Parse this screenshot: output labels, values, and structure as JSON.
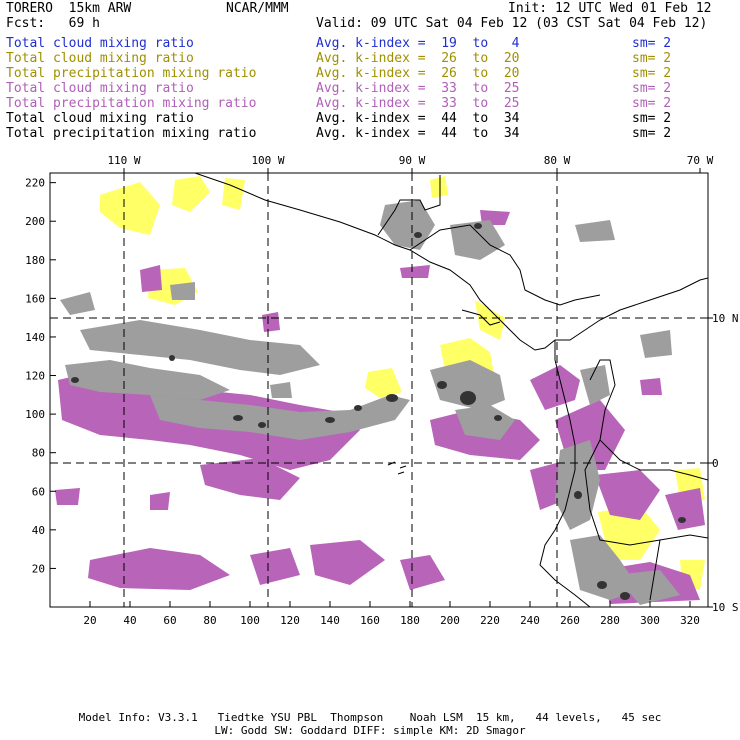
{
  "header": {
    "title": "TORERO  15km ARW",
    "center": "NCAR/MMM",
    "init": "Init: 12 UTC Wed 01 Feb 12",
    "fcst": "Fcst:   69 h",
    "valid": "Valid: 09 UTC Sat 04 Feb 12 (03 CST Sat 04 Feb 12)"
  },
  "legend": [
    {
      "field": "Total cloud mixing ratio",
      "kindex": "Avg. k-index =  19  to   4",
      "sm": "sm= 2",
      "color": "#1f2fd0"
    },
    {
      "field": "Total cloud mixing ratio",
      "kindex": "Avg. k-index =  26  to  20",
      "sm": "sm= 2",
      "color": "#a09000"
    },
    {
      "field": "Total precipitation mixing ratio",
      "kindex": "Avg. k-index =  26  to  20",
      "sm": "sm= 2",
      "color": "#a09000"
    },
    {
      "field": "Total cloud mixing ratio",
      "kindex": "Avg. k-index =  33  to  25",
      "sm": "sm= 2",
      "color": "#b060b8"
    },
    {
      "field": "Total precipitation mixing ratio",
      "kindex": "Avg. k-index =  33  to  25",
      "sm": "sm= 2",
      "color": "#b060b8"
    },
    {
      "field": "Total cloud mixing ratio",
      "kindex": "Avg. k-index =  44  to  34",
      "sm": "sm= 2",
      "color": "#000000"
    },
    {
      "field": "Total precipitation mixing ratio",
      "kindex": "Avg. k-index =  44  to  34",
      "sm": "sm= 2",
      "color": "#000000"
    }
  ],
  "map": {
    "lon_labels": [
      "110 W",
      "100 W",
      "90 W",
      "80 W",
      "70 W"
    ],
    "lat_labels": [
      "10 N",
      "0",
      "10 S"
    ],
    "x_ticks": [
      "20",
      "40",
      "60",
      "80",
      "100",
      "120",
      "140",
      "160",
      "180",
      "200",
      "220",
      "240",
      "260",
      "280",
      "300",
      "320"
    ],
    "y_ticks": [
      "20",
      "40",
      "60",
      "80",
      "100",
      "120",
      "140",
      "160",
      "180",
      "200",
      "220"
    ],
    "colors": {
      "yellow": "#ffff66",
      "purple": "#b864b8",
      "gray": "#9e9e9e",
      "dark": "#333333",
      "border": "#000000"
    }
  },
  "footer": {
    "line1": "Model Info: V3.3.1   Tiedtke YSU PBL  Thompson    Noah LSM  15 km,   44 levels,   45 sec",
    "line2": "LW: Godd SW: Goddard DIFF: simple KM: 2D Smagor"
  }
}
